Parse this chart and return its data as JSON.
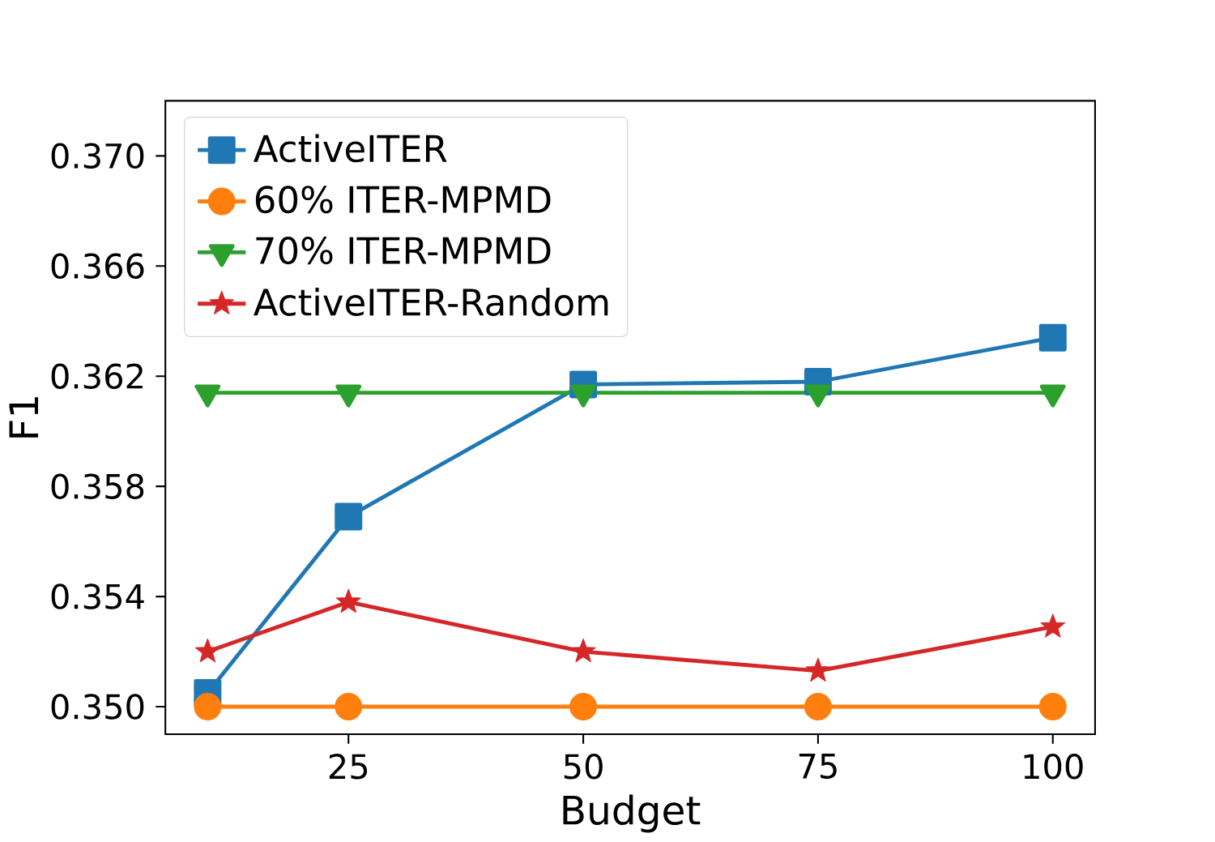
{
  "chart_data": {
    "type": "line",
    "xlabel": "Budget",
    "ylabel": "F1",
    "x": [
      10,
      25,
      50,
      75,
      100
    ],
    "series": [
      {
        "name": "ActiveITER",
        "color": "#1f77b4",
        "marker": "square",
        "values": [
          0.3505,
          0.3569,
          0.3617,
          0.3618,
          0.3634
        ]
      },
      {
        "name": "60% ITER-MPMD",
        "color": "#ff7f0e",
        "marker": "circle",
        "values": [
          0.35,
          0.35,
          0.35,
          0.35,
          0.35
        ]
      },
      {
        "name": "70% ITER-MPMD",
        "color": "#2ca02c",
        "marker": "triangle",
        "values": [
          0.3614,
          0.3614,
          0.3614,
          0.3614,
          0.3614
        ]
      },
      {
        "name": "ActiveITER-Random",
        "color": "#d62728",
        "marker": "star",
        "values": [
          0.352,
          0.3538,
          0.352,
          0.3513,
          0.3529
        ]
      }
    ],
    "xlim": [
      5.5,
      104.5
    ],
    "ylim": [
      0.349,
      0.372
    ],
    "xticks": [
      25,
      50,
      75,
      100
    ],
    "yticks": [
      {
        "value": 0.35,
        "label": "0.350"
      },
      {
        "value": 0.354,
        "label": "0.354"
      },
      {
        "value": 0.358,
        "label": "0.358"
      },
      {
        "value": 0.362,
        "label": "0.362"
      },
      {
        "value": 0.366,
        "label": "0.366"
      },
      {
        "value": 0.37,
        "label": "0.370"
      }
    ],
    "legend": "top left",
    "grid": false,
    "line_style": "solid"
  }
}
